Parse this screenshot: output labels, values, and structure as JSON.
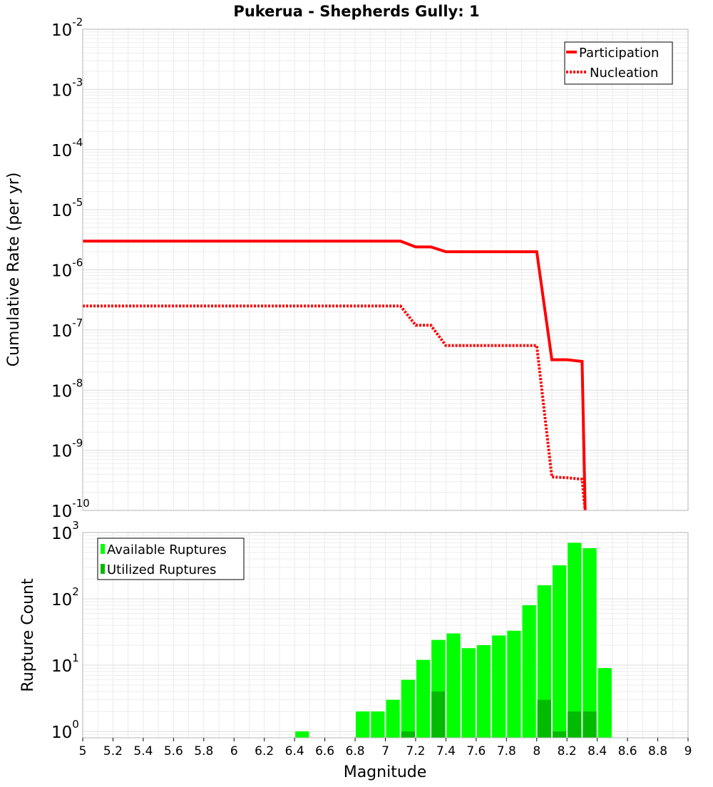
{
  "chart_data": [
    {
      "type": "line",
      "title": "Pukerua - Shepherds Gully: 1",
      "xlabel": "",
      "ylabel": "Cumulative Rate (per yr)",
      "xlim": [
        5,
        9
      ],
      "ylim": [
        1e-10,
        0.01
      ],
      "yscale": "log",
      "grid": true,
      "legend_position": "top-right",
      "y_tick_exponents": [
        "-2",
        "-3",
        "-4",
        "-5",
        "-6",
        "-7",
        "-8",
        "-9",
        "-10"
      ],
      "series": [
        {
          "name": "Participation",
          "style": "solid",
          "color": "#ff0000",
          "x": [
            5.0,
            7.1,
            7.2,
            7.3,
            7.4,
            7.5,
            7.6,
            7.7,
            7.8,
            7.9,
            8.0,
            8.1,
            8.2,
            8.3,
            8.32
          ],
          "y": [
            3e-06,
            3e-06,
            2.4e-06,
            2.4e-06,
            2e-06,
            2e-06,
            2e-06,
            2e-06,
            2e-06,
            2e-06,
            2e-06,
            3.2e-08,
            3.2e-08,
            3e-08,
            1e-10
          ]
        },
        {
          "name": "Nucleation",
          "style": "dotted",
          "color": "#ff0000",
          "x": [
            5.0,
            7.1,
            7.2,
            7.3,
            7.4,
            7.5,
            7.6,
            7.7,
            7.8,
            7.9,
            8.0,
            8.1,
            8.2,
            8.3,
            8.32
          ],
          "y": [
            2.5e-07,
            2.5e-07,
            1.2e-07,
            1.2e-07,
            5.5e-08,
            5.5e-08,
            5.5e-08,
            5.5e-08,
            5.5e-08,
            5.5e-08,
            5.5e-08,
            3.6e-10,
            3.5e-10,
            3.3e-10,
            1e-10
          ]
        }
      ]
    },
    {
      "type": "bar",
      "title": "",
      "xlabel": "Magnitude",
      "ylabel": "Rupture Count",
      "xlim": [
        5,
        9
      ],
      "ylim": [
        0.8,
        1000
      ],
      "yscale": "log",
      "grid": true,
      "legend_position": "top-left",
      "bin_width": 0.1,
      "x_ticks": [
        "5",
        "5.2",
        "5.4",
        "5.6",
        "5.8",
        "6",
        "6.2",
        "6.4",
        "6.6",
        "6.8",
        "7",
        "7.2",
        "7.4",
        "7.6",
        "7.8",
        "8",
        "8.2",
        "8.4",
        "8.6",
        "8.8",
        "9"
      ],
      "y_tick_exponents": [
        "0",
        "1",
        "2",
        "3"
      ],
      "categories": [
        6.45,
        6.85,
        6.95,
        7.05,
        7.15,
        7.25,
        7.35,
        7.45,
        7.55,
        7.65,
        7.75,
        7.85,
        7.95,
        8.05,
        8.15,
        8.25,
        8.35,
        8.45
      ],
      "series": [
        {
          "name": "Available Ruptures",
          "color": "#00ff00",
          "values": [
            1,
            2,
            2,
            3,
            6,
            12,
            24,
            30,
            18,
            20,
            28,
            33,
            80,
            160,
            320,
            700,
            580,
            9
          ]
        },
        {
          "name": "Utilized Ruptures",
          "color": "#00bb00",
          "values": [
            0,
            0,
            0,
            0,
            1,
            0,
            4,
            0,
            0,
            0,
            0,
            0,
            0,
            3,
            1,
            2,
            2,
            0
          ]
        }
      ]
    }
  ]
}
